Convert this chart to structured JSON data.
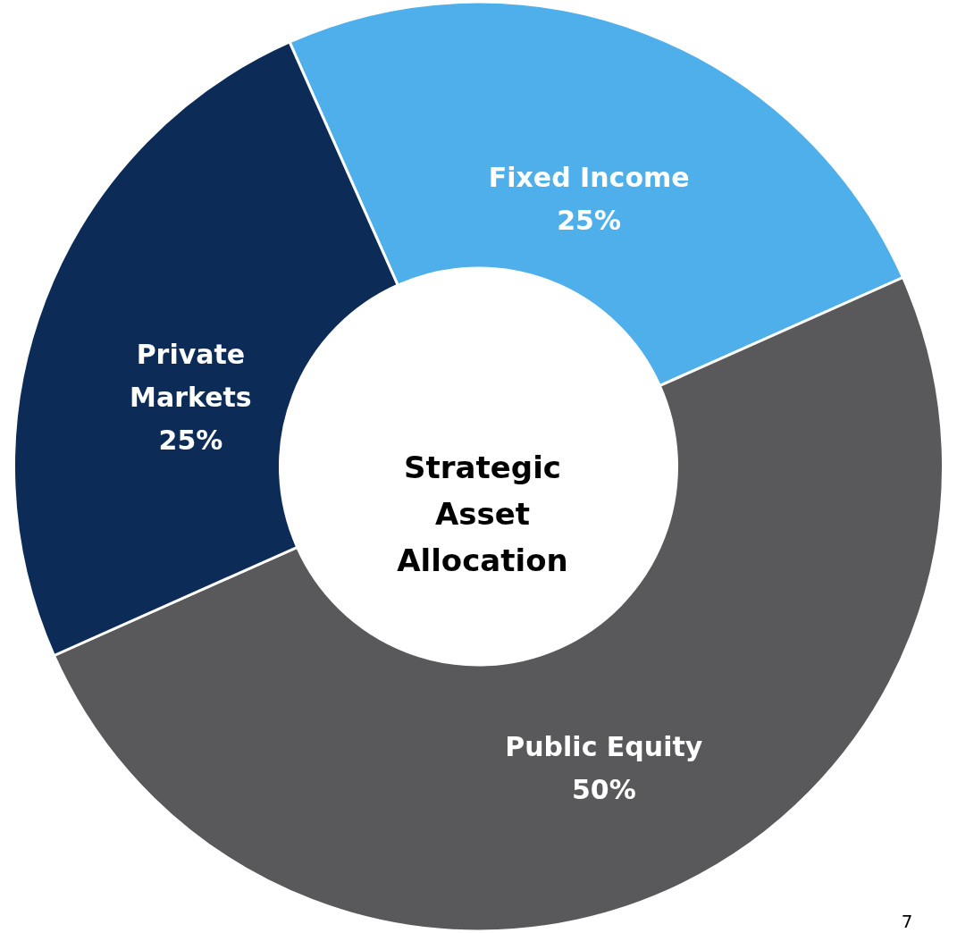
{
  "chart_data": {
    "type": "donut",
    "title": "Strategic Asset Allocation",
    "categories": [
      "Fixed Income",
      "Public Equity",
      "Private Markets"
    ],
    "values": [
      25,
      50,
      25
    ],
    "colors": [
      "#4fafeb",
      "#59595b",
      "#0d2b57"
    ],
    "value_labels": [
      "25%",
      "50%",
      "25%"
    ],
    "annotations": [
      "7"
    ]
  }
}
